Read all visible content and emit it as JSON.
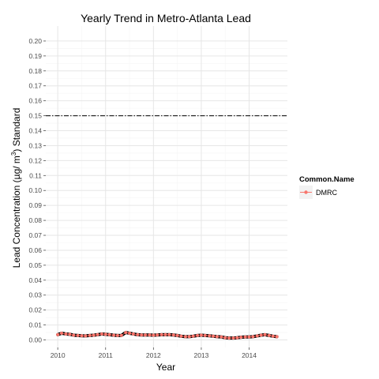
{
  "chart_data": {
    "type": "line",
    "title": "Yearly Trend in Metro-Atlanta Lead",
    "xlabel": "Year",
    "ylabel": "Lead Concentration (µg/m³) Standard",
    "ylabel_parts": {
      "prefix": "Lead Concentration (µg/ m",
      "sup": "3",
      "suffix": ") Standard"
    },
    "xlim": [
      2009.75,
      2014.8
    ],
    "ylim": [
      -0.005,
      0.21
    ],
    "x_ticks": [
      2010,
      2011,
      2012,
      2013,
      2014
    ],
    "x_tick_labels": [
      "2010",
      "2011",
      "2012",
      "2013",
      "2014"
    ],
    "y_ticks": [
      0.0,
      0.01,
      0.02,
      0.03,
      0.04,
      0.05,
      0.06,
      0.07,
      0.08,
      0.09,
      0.1,
      0.11,
      0.12,
      0.13,
      0.14,
      0.15,
      0.16,
      0.17,
      0.18,
      0.19,
      0.2
    ],
    "y_tick_labels": [
      "0.00",
      "0.01",
      "0.02",
      "0.03",
      "0.04",
      "0.05",
      "0.06",
      "0.07",
      "0.08",
      "0.09",
      "0.10",
      "0.11",
      "0.12",
      "0.13",
      "0.14",
      "0.15",
      "0.16",
      "0.17",
      "0.18",
      "0.19",
      "0.20"
    ],
    "grid": true,
    "reference_line": {
      "y": 0.15,
      "style": "dash-dot",
      "color": "#000000"
    },
    "legend": {
      "title": "Common.Name",
      "placement": "right"
    },
    "series": [
      {
        "name": "DMRC",
        "color": "#f8766d",
        "trend_color": "#000000",
        "x": [
          2010.0,
          2010.08,
          2010.17,
          2010.25,
          2010.33,
          2010.42,
          2010.5,
          2010.58,
          2010.67,
          2010.75,
          2010.83,
          2010.92,
          2011.0,
          2011.08,
          2011.17,
          2011.25,
          2011.33,
          2011.42,
          2011.5,
          2011.58,
          2011.67,
          2011.75,
          2011.83,
          2011.92,
          2012.0,
          2012.08,
          2012.17,
          2012.25,
          2012.33,
          2012.42,
          2012.5,
          2012.58,
          2012.67,
          2012.75,
          2012.83,
          2012.92,
          2013.0,
          2013.08,
          2013.17,
          2013.25,
          2013.33,
          2013.42,
          2013.5,
          2013.58,
          2013.67,
          2013.75,
          2013.83,
          2013.92,
          2014.0,
          2014.08,
          2014.17,
          2014.25,
          2014.33,
          2014.42,
          2014.5,
          2014.58
        ],
        "y": [
          0.0035,
          0.0045,
          0.004,
          0.0038,
          0.0032,
          0.003,
          0.0028,
          0.0027,
          0.003,
          0.0032,
          0.0035,
          0.004,
          0.0038,
          0.0035,
          0.0032,
          0.003,
          0.003,
          0.005,
          0.0045,
          0.004,
          0.0035,
          0.0033,
          0.0033,
          0.0033,
          0.0032,
          0.0033,
          0.0035,
          0.0035,
          0.0035,
          0.0033,
          0.003,
          0.0025,
          0.0022,
          0.0022,
          0.0025,
          0.003,
          0.0032,
          0.003,
          0.0028,
          0.0025,
          0.0022,
          0.002,
          0.0015,
          0.0013,
          0.0013,
          0.0015,
          0.0018,
          0.002,
          0.002,
          0.0022,
          0.0027,
          0.0032,
          0.0035,
          0.003,
          0.0025,
          0.0022
        ]
      }
    ]
  }
}
